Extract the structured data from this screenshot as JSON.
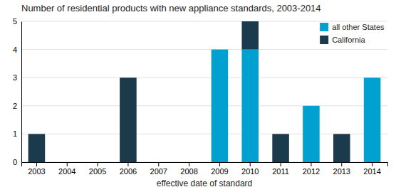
{
  "chart_data": {
    "type": "bar",
    "stacked": true,
    "title": "Number of residential products with new appliance standards, 2003-2014",
    "xlabel": "effective date of standard",
    "categories": [
      "2003",
      "2004",
      "2005",
      "2006",
      "2007",
      "2008",
      "2009",
      "2010",
      "2011",
      "2012",
      "2013",
      "2014"
    ],
    "series": [
      {
        "name": "all other States",
        "color": "#00a0d1",
        "values": [
          0,
          0,
          0,
          0,
          0,
          0,
          4,
          4,
          0,
          2,
          0,
          3
        ]
      },
      {
        "name": "California",
        "color": "#1b3a4b",
        "values": [
          1,
          0,
          0,
          3,
          0,
          0,
          0,
          1,
          1,
          0,
          1,
          0
        ]
      }
    ],
    "ylim": [
      0,
      5
    ],
    "yticks": [
      0,
      1,
      2,
      3,
      4,
      5
    ],
    "grid": true,
    "legend": "upper right"
  }
}
